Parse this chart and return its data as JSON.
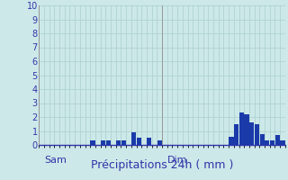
{
  "title": "Précipitations 24h ( mm )",
  "background_color": "#cce8e8",
  "grid_color": "#aacfcf",
  "bar_color": "#1a3aaa",
  "ylim": [
    0,
    10
  ],
  "yticks": [
    0,
    1,
    2,
    3,
    4,
    5,
    6,
    7,
    8,
    9,
    10
  ],
  "num_bars": 48,
  "day_labels": [
    "Sam",
    "Dim"
  ],
  "day_positions": [
    0,
    24
  ],
  "bar_values": [
    0,
    0,
    0,
    0,
    0,
    0,
    0,
    0,
    0,
    0,
    0.3,
    0,
    0.3,
    0.3,
    0,
    0.3,
    0.3,
    0,
    0.9,
    0.5,
    0,
    0.5,
    0,
    0.3,
    0,
    0,
    0,
    0,
    0,
    0,
    0,
    0,
    0,
    0,
    0,
    0,
    0,
    0.6,
    1.5,
    2.3,
    2.2,
    1.6,
    1.5,
    0.8,
    0.3,
    0.3,
    0.7,
    0.3
  ],
  "ylabel_color": "#3333aa",
  "axis_color": "#3333aa",
  "title_fontsize": 9,
  "tick_fontsize": 7,
  "day_label_fontsize": 8
}
